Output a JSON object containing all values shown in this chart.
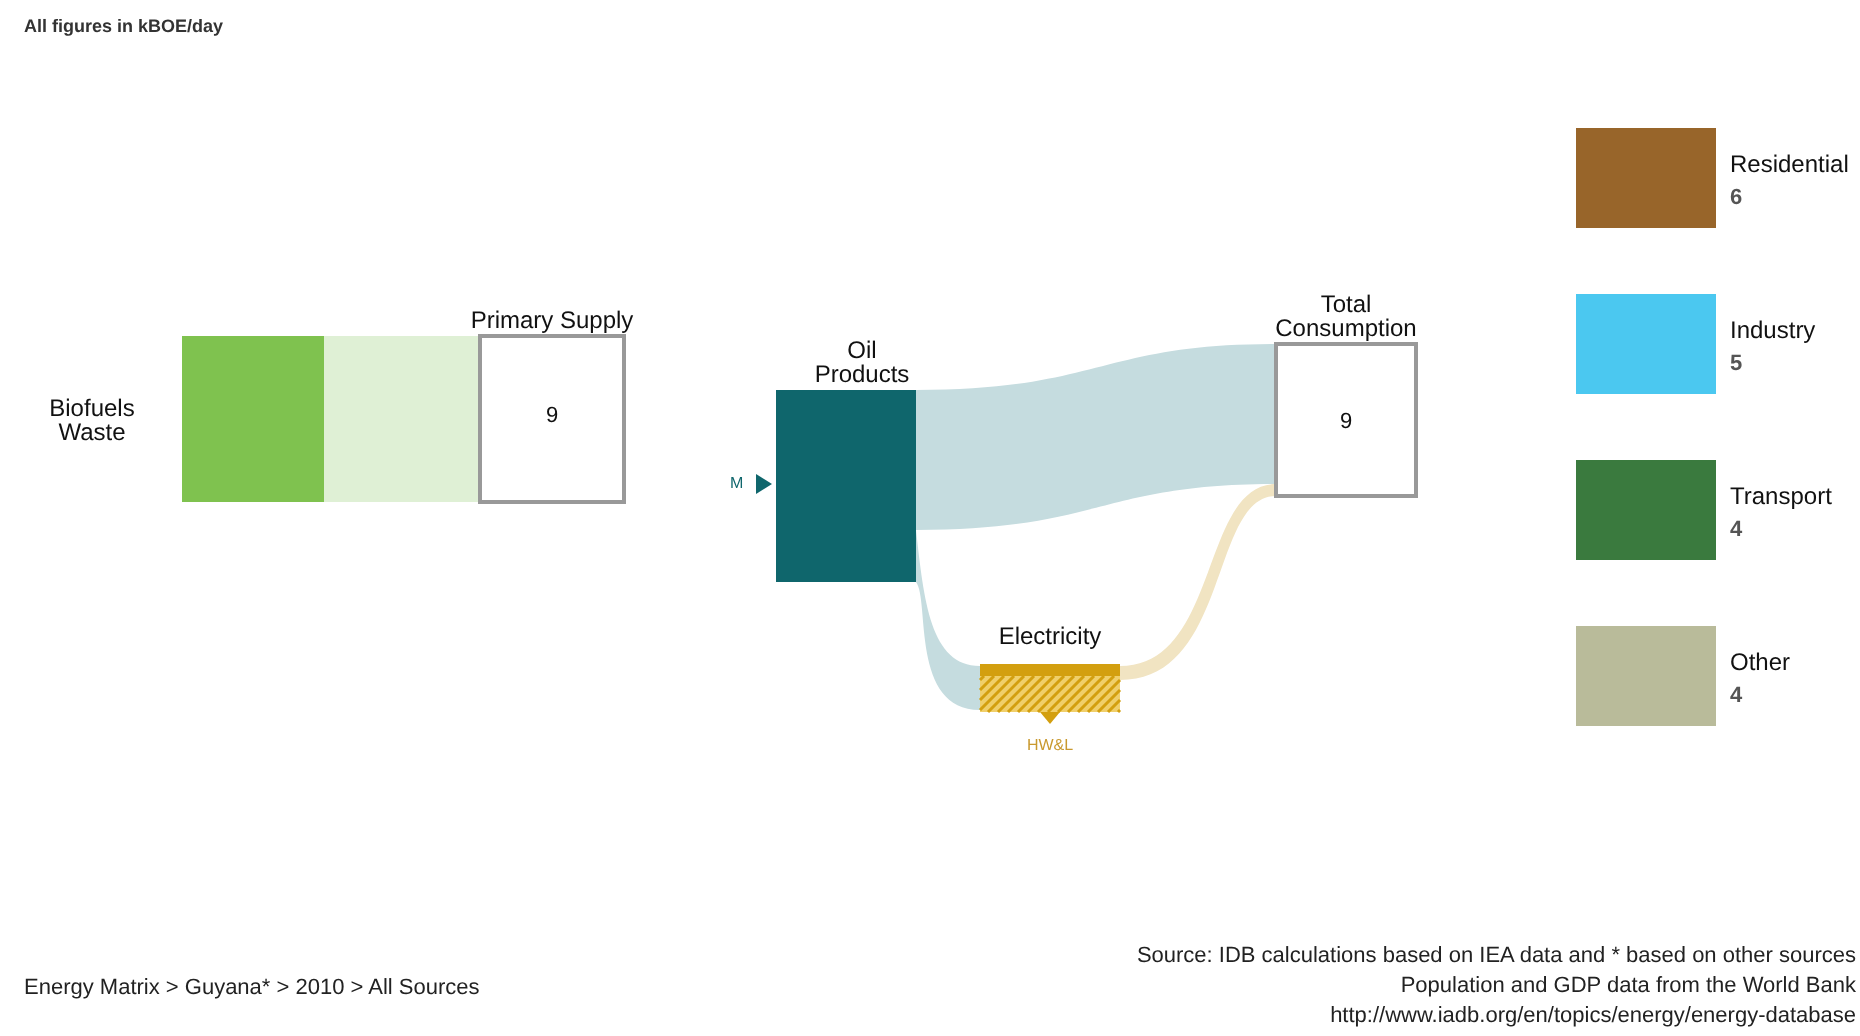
{
  "chart_data": {
    "type": "other",
    "title": "All figures in kBOE/day",
    "categories": [
      "Primary Supply",
      "Total Consumption",
      "Residential",
      "Industry",
      "Transport",
      "Other"
    ],
    "values": [
      9,
      9,
      6,
      5,
      4,
      4
    ],
    "colors": [
      "#ffffff",
      "#ffffff",
      "#98652a",
      "#4bc8f0",
      "#3a7a3e",
      "#b9bb9a"
    ],
    "data_labels": true,
    "annotations": [
      "Biofuels Waste",
      "Oil Products",
      "M",
      "Electricity",
      "HW&L",
      "Energy Matrix > Guyana* > 2010 > All Sources",
      "Source: IDB calculations based on IEA data and * based on other sources",
      "Population and GDP data from the World Bank",
      "http://www.iadb.org/en/topics/energy/energy-database"
    ]
  }
}
